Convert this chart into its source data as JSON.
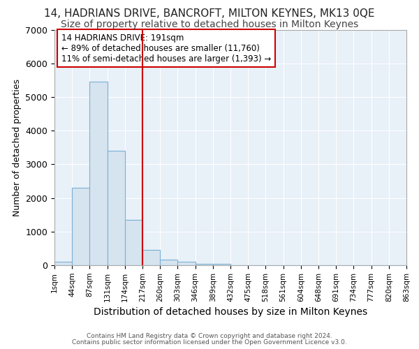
{
  "title1": "14, HADRIANS DRIVE, BANCROFT, MILTON KEYNES, MK13 0QE",
  "title2": "Size of property relative to detached houses in Milton Keynes",
  "xlabel": "Distribution of detached houses by size in Milton Keynes",
  "ylabel": "Number of detached properties",
  "bar_values": [
    100,
    2300,
    5450,
    3400,
    1350,
    450,
    175,
    100,
    50,
    50,
    0,
    0,
    0,
    0,
    0,
    0,
    0,
    0,
    0,
    0
  ],
  "bar_labels": [
    "1sqm",
    "44sqm",
    "87sqm",
    "131sqm",
    "174sqm",
    "217sqm",
    "260sqm",
    "303sqm",
    "346sqm",
    "389sqm",
    "432sqm",
    "475sqm",
    "518sqm",
    "561sqm",
    "604sqm",
    "648sqm",
    "691sqm",
    "734sqm",
    "777sqm",
    "820sqm",
    "863sqm"
  ],
  "bar_color": "#d6e4f0",
  "bar_edge_color": "#7ab0d4",
  "vline_color": "#cc0000",
  "ylim": [
    0,
    7000
  ],
  "annotation_text": "14 HADRIANS DRIVE: 191sqm\n← 89% of detached houses are smaller (11,760)\n11% of semi-detached houses are larger (1,393) →",
  "annotation_box_color": "#ffffff",
  "annotation_box_edge": "#cc0000",
  "footer1": "Contains HM Land Registry data © Crown copyright and database right 2024.",
  "footer2": "Contains public sector information licensed under the Open Government Licence v3.0.",
  "background_color": "#ffffff",
  "plot_bg_color": "#e8f0f8",
  "grid_color": "#ffffff",
  "title1_fontsize": 11,
  "title2_fontsize": 10,
  "ylabel_fontsize": 9,
  "xlabel_fontsize": 10
}
